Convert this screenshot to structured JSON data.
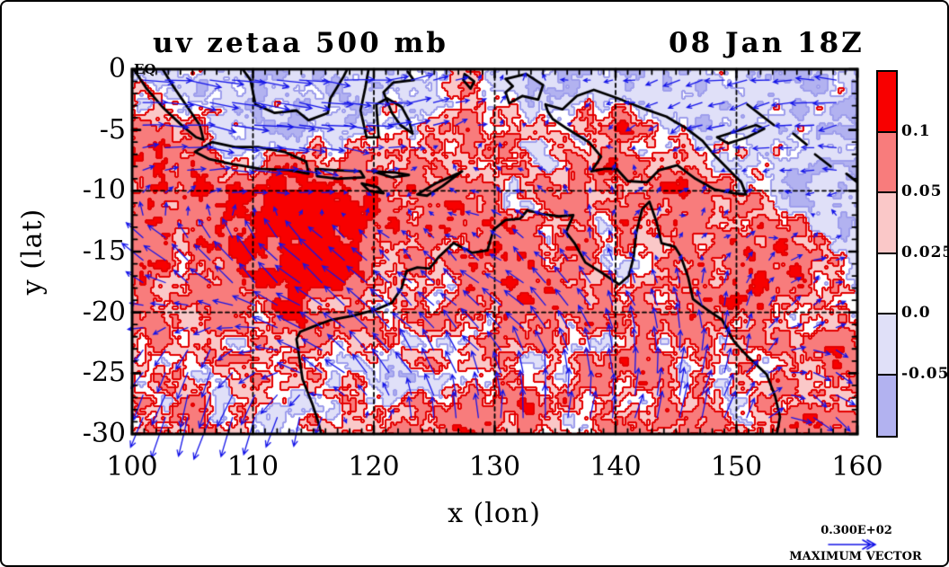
{
  "window": {
    "background": "#ffffff",
    "border_color": "#000000"
  },
  "figure": {
    "title_left": "uv zetaa 500 mb",
    "title_right": "08 Jan 18Z",
    "xlabel": "x (lon)",
    "ylabel": "y (lat)",
    "equator_label": "EQ",
    "max_vector_value": "0.300E+02",
    "max_vector_caption": "MAXIMUM VECTOR"
  },
  "chart_data": {
    "type": "heatmap",
    "subtype": "filled_contour_with_wind_vectors",
    "title": "uv zetaa 500 mb",
    "timestamp": "08 Jan 18Z",
    "xlabel": "x (lon)",
    "ylabel": "y (lat)",
    "xlim": [
      100,
      160
    ],
    "ylim": [
      -30,
      0
    ],
    "xticks": [
      100,
      110,
      120,
      130,
      140,
      150,
      160
    ],
    "yticks": [
      0,
      -5,
      -10,
      -15,
      -20,
      -25,
      -30
    ],
    "minor_tick_step_deg": 1,
    "grid_lines_lon": [
      110,
      120,
      130,
      140,
      150
    ],
    "grid_lines_lat": [
      -10,
      -20
    ],
    "contour_levels": [
      -0.05,
      0.0,
      0.025,
      0.05,
      0.1
    ],
    "colorbar_labels_top_to_bottom": [
      "0.1",
      "0.05",
      "0.025",
      "0.0",
      "-0.05"
    ],
    "palette_low_to_high": [
      "#b2b2f0",
      "#e0e0f8",
      "#ffffff",
      "#fac8c8",
      "#f87c7c",
      "#f80000"
    ],
    "contour_line_color_positive": "#e40000",
    "contour_line_color_negative": "#9e9eec",
    "vector_color": "#1414e8",
    "coastline_color": "#000000",
    "grid_line_color": "#000000",
    "max_vector": 30,
    "lon_grid": [
      100,
      105,
      110,
      115,
      120,
      125,
      130,
      135,
      140,
      145,
      150,
      155,
      160
    ],
    "lat_grid": [
      0,
      -5,
      -10,
      -15,
      -20,
      -25,
      -30
    ],
    "zeta": [
      [
        -0.03,
        -0.04,
        -0.04,
        -0.03,
        -0.04,
        -0.02,
        0.01,
        -0.04,
        -0.05,
        -0.03,
        0.02,
        -0.04,
        -0.02
      ],
      [
        0.06,
        0.03,
        -0.03,
        -0.04,
        -0.02,
        0.03,
        0.05,
        0.02,
        0.08,
        -0.02,
        -0.04,
        -0.03,
        -0.04
      ],
      [
        0.06,
        0.09,
        0.11,
        0.15,
        0.08,
        0.06,
        0.04,
        0.03,
        0.06,
        0.08,
        0.04,
        -0.03,
        -0.04
      ],
      [
        0.05,
        0.06,
        0.09,
        0.18,
        0.1,
        0.05,
        0.08,
        0.04,
        0.03,
        0.05,
        0.08,
        0.1,
        -0.03
      ],
      [
        0.04,
        0.06,
        0.05,
        0.08,
        0.04,
        0.03,
        0.05,
        0.06,
        0.04,
        0.06,
        0.08,
        0.03,
        0.06
      ],
      [
        0.05,
        0.03,
        0.02,
        0.03,
        -0.03,
        0.02,
        0.04,
        0.03,
        0.05,
        0.04,
        0.03,
        0.06,
        0.08
      ],
      [
        0.03,
        0.04,
        0.02,
        0.03,
        0.04,
        0.06,
        0.1,
        0.05,
        0.04,
        0.06,
        0.05,
        0.08,
        0.04
      ]
    ],
    "wind_u": [
      [
        14,
        16,
        18,
        16,
        12,
        8,
        2,
        -2,
        -4,
        -8,
        -10,
        -10,
        -12
      ],
      [
        10,
        14,
        18,
        16,
        12,
        6,
        2,
        0,
        -2,
        -6,
        -8,
        -10,
        -10
      ],
      [
        4,
        6,
        8,
        6,
        2,
        -2,
        -4,
        -2,
        2,
        4,
        2,
        -4,
        -6
      ],
      [
        -12,
        -10,
        -8,
        -12,
        -6,
        -4,
        -6,
        -4,
        -2,
        0,
        4,
        6,
        4
      ],
      [
        -8,
        -6,
        -10,
        -12,
        -10,
        -8,
        -10,
        -8,
        -4,
        -2,
        0,
        4,
        4
      ],
      [
        -6,
        -4,
        -8,
        -10,
        -8,
        -6,
        -4,
        -2,
        0,
        2,
        4,
        8,
        8
      ],
      [
        -4,
        -8,
        -6,
        0,
        4,
        3,
        2,
        3,
        4,
        5,
        6,
        8,
        10
      ]
    ],
    "wind_v": [
      [
        -2,
        -2,
        -3,
        -2,
        0,
        2,
        3,
        2,
        0,
        -2,
        -2,
        0,
        0
      ],
      [
        0,
        -2,
        -3,
        -2,
        0,
        2,
        2,
        0,
        -2,
        -3,
        -2,
        -2,
        0
      ],
      [
        4,
        2,
        0,
        -2,
        -2,
        0,
        2,
        2,
        4,
        2,
        2,
        0,
        0
      ],
      [
        8,
        10,
        12,
        10,
        6,
        4,
        4,
        6,
        4,
        2,
        2,
        2,
        2
      ],
      [
        2,
        -2,
        4,
        8,
        10,
        8,
        8,
        10,
        8,
        10,
        8,
        4,
        0
      ],
      [
        -8,
        -14,
        -6,
        6,
        10,
        12,
        10,
        12,
        12,
        14,
        10,
        -2,
        -6
      ],
      [
        -18,
        -24,
        -26,
        -16,
        2,
        10,
        14,
        16,
        14,
        16,
        12,
        -6,
        -10
      ]
    ],
    "coastlines": [
      [
        100,
        0.2,
        101.2,
        -1.6,
        102.6,
        -3.2,
        104.2,
        -4.7,
        105.3,
        -5.6,
        105.9,
        -5.8,
        105.6,
        -4.6,
        104.5,
        -3.0,
        103.4,
        -1.4,
        102.4,
        0.2
      ],
      [
        105.2,
        -6.8,
        106.6,
        -6.0,
        108.5,
        -6.4,
        110.4,
        -6.4,
        112.6,
        -6.8,
        114.4,
        -7.6,
        114.6,
        -8.6,
        113.0,
        -8.3,
        110.6,
        -8.2,
        108.3,
        -7.8,
        106.4,
        -7.4,
        105.2,
        -6.8
      ],
      [
        115.2,
        -8.2,
        116.7,
        -8.3,
        118.9,
        -8.4,
        119.2,
        -8.9,
        117.0,
        -9.0,
        115.3,
        -8.8,
        115.2,
        -8.2
      ],
      [
        119.9,
        -8.4,
        121.8,
        -8.5,
        122.9,
        -8.7,
        121.5,
        -8.9,
        119.9,
        -8.4
      ],
      [
        119.0,
        -9.4,
        120.3,
        -9.7,
        120.8,
        -10.2,
        119.6,
        -10.0,
        119.0,
        -9.4
      ],
      [
        123.6,
        -10.3,
        125.1,
        -9.4,
        126.9,
        -8.6,
        127.3,
        -8.4,
        125.7,
        -9.6,
        124.4,
        -10.4,
        123.6,
        -10.3
      ],
      [
        109.0,
        0.2,
        109.8,
        -0.9,
        110.2,
        -2.9,
        111.8,
        -3.6,
        113.6,
        -3.4,
        114.6,
        -4.2,
        116.2,
        -3.6,
        116.4,
        -2.4,
        117.5,
        -0.6,
        117.9,
        0.2
      ],
      [
        119.6,
        0.2,
        119.3,
        -1.5,
        118.9,
        -3.4,
        119.4,
        -5.6,
        120.4,
        -5.6,
        120.2,
        -2.9,
        121.1,
        -2.4,
        122.3,
        -3.1,
        122.9,
        -4.2,
        123.2,
        -5.3,
        122.2,
        -4.6,
        121.5,
        -3.6,
        120.8,
        -1.9,
        121.6,
        -1.1,
        123.3,
        -0.9,
        122.8,
        -0.2
      ],
      [
        127.5,
        -0.4,
        128.3,
        -1.0,
        128.0,
        -1.6,
        127.4,
        -0.9,
        127.5,
        -0.4
      ],
      [
        130.9,
        -0.8,
        132.6,
        -0.4,
        134.0,
        -1.3,
        133.6,
        -2.5,
        132.3,
        -2.2,
        131.2,
        -2.8,
        130.9,
        -1.9,
        131.5,
        -1.4,
        130.9,
        -0.8
      ],
      [
        134.2,
        -2.9,
        135.6,
        -3.3,
        136.8,
        -2.2,
        138.2,
        -1.7,
        140.2,
        -2.4,
        142.2,
        -3.2,
        144.2,
        -3.9,
        145.9,
        -4.9,
        147.2,
        -5.9,
        148.2,
        -7.1,
        149.3,
        -8.2,
        150.4,
        -9.3,
        150.8,
        -10.3,
        149.8,
        -10.2,
        148.2,
        -9.9,
        146.6,
        -9.0,
        145.1,
        -7.9,
        143.6,
        -8.3,
        142.6,
        -9.3,
        141.0,
        -9.2,
        140.1,
        -8.2,
        139.1,
        -8.2,
        138.0,
        -8.4,
        138.8,
        -7.2,
        137.8,
        -6.0,
        136.0,
        -4.9,
        134.8,
        -4.1,
        134.4,
        -3.5,
        134.2,
        -2.9
      ],
      [
        148.4,
        -5.6,
        150.0,
        -5.1,
        151.6,
        -4.6,
        152.3,
        -4.9,
        150.9,
        -5.6,
        149.3,
        -6.1,
        148.4,
        -5.6
      ],
      [
        150.9,
        -2.9,
        152.2,
        -3.9,
        153.1,
        -4.6
      ],
      [
        154.7,
        -5.3,
        155.8,
        -6.2
      ],
      [
        156.5,
        -7.0,
        157.8,
        -8.0
      ],
      [
        159.1,
        -8.6,
        160.0,
        -9.3
      ],
      [
        115.7,
        -30.2,
        115.4,
        -29.0,
        114.9,
        -27.5,
        114.1,
        -25.5,
        113.8,
        -23.5,
        113.6,
        -22.2,
        113.9,
        -21.6,
        114.9,
        -21.2,
        116.5,
        -20.6,
        118.2,
        -20.3,
        120.1,
        -19.8,
        121.5,
        -19.2,
        122.3,
        -18.0,
        122.7,
        -16.6,
        123.6,
        -16.3,
        124.6,
        -16.4,
        125.4,
        -15.4,
        126.6,
        -14.3,
        128.1,
        -15.1,
        129.4,
        -14.9,
        129.9,
        -13.2,
        130.9,
        -12.4,
        132.1,
        -12.3,
        132.7,
        -11.6,
        133.9,
        -11.9,
        135.3,
        -12.1,
        136.5,
        -12.0,
        135.9,
        -13.4,
        136.6,
        -14.3,
        137.5,
        -15.9,
        138.8,
        -16.7,
        140.3,
        -17.7,
        141.1,
        -17.0,
        141.5,
        -15.4,
        141.7,
        -13.5,
        142.2,
        -11.5,
        142.8,
        -10.9,
        143.4,
        -12.6,
        143.8,
        -14.3,
        144.9,
        -14.6,
        145.4,
        -15.4,
        146.0,
        -17.1,
        146.4,
        -18.9,
        147.6,
        -19.8,
        148.8,
        -20.6,
        149.8,
        -22.4,
        150.9,
        -23.6,
        152.5,
        -25.1,
        153.2,
        -26.9,
        153.6,
        -28.6,
        153.3,
        -30.2
      ]
    ]
  }
}
